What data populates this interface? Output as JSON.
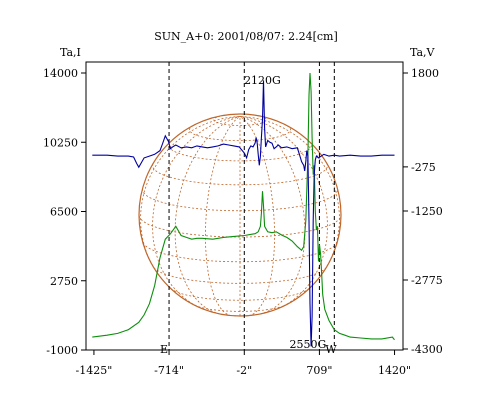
{
  "chart_data": [
    {
      "type": "line",
      "title": "SUN_A+0: 2001/08/07: 2.24[cm]",
      "left_axis_label": "Ta,I",
      "right_axis_label": "Ta,V",
      "xlim": [
        -1500,
        1500
      ],
      "x_tick_labels": [
        "-1425\"",
        "-714\"",
        "-2\"",
        "709\"",
        "1420\""
      ],
      "x_ticks": [
        -1425,
        -714,
        -2,
        709,
        1420
      ],
      "left_ylim": [
        -1000,
        14000
      ],
      "left_ticks": [
        14000,
        10250,
        6500,
        2750,
        -1000
      ],
      "right_ylim": [
        -4300,
        1800
      ],
      "right_ticks": [
        1800,
        -275,
        -1250,
        -2775,
        -4300
      ],
      "right_tick_labels": [
        "1800",
        "-275",
        "-1250",
        "-2775",
        "-4300"
      ],
      "markers": [
        {
          "x": -714,
          "label": "E"
        },
        {
          "x": -2,
          "label": ""
        },
        {
          "x": 709,
          "label": ""
        },
        {
          "x": 850,
          "label": "W"
        }
      ],
      "annotations": [
        {
          "text": "2120G",
          "x": 170,
          "y_left": 13400
        },
        {
          "text": "2550G",
          "x": 600,
          "y_left": -900
        }
      ],
      "series": [
        {
          "name": "",
          "axis": "left",
          "color": "#0d8f0d",
          "x": [
            -1440,
            -1300,
            -1200,
            -1100,
            -1000,
            -950,
            -900,
            -850,
            -800,
            -750,
            -700,
            -650,
            -600,
            -550,
            -500,
            -450,
            -400,
            -300,
            -200,
            -100,
            0,
            50,
            100,
            130,
            150,
            160,
            170,
            180,
            190,
            200,
            220,
            260,
            300,
            360,
            400,
            450,
            500,
            540,
            560,
            580,
            600,
            610,
            620,
            630,
            640,
            650,
            660,
            670,
            680,
            690,
            700,
            710,
            720,
            730,
            740,
            760,
            800,
            850,
            900,
            950,
            1000,
            1100,
            1200,
            1300,
            1400,
            1420
          ],
          "y": [
            -300,
            -200,
            -100,
            100,
            500,
            900,
            1500,
            2500,
            4000,
            5000,
            5300,
            5700,
            5200,
            5100,
            5000,
            5050,
            5050,
            5000,
            5100,
            5150,
            5200,
            5250,
            5300,
            5400,
            5700,
            6400,
            7600,
            6800,
            5700,
            5600,
            5400,
            5350,
            5400,
            5200,
            5100,
            4900,
            4600,
            4400,
            4600,
            6000,
            9500,
            12800,
            14000,
            13000,
            10500,
            8500,
            9000,
            6500,
            5500,
            5700,
            3800,
            4700,
            4200,
            3200,
            2000,
            1200,
            600,
            100,
            -100,
            -200,
            -300,
            -350,
            -400,
            -400,
            -300,
            -450
          ]
        },
        {
          "name": "",
          "axis": "left",
          "color": "#0000a0",
          "x": [
            -1440,
            -1300,
            -1200,
            -1100,
            -1050,
            -1020,
            -1000,
            -980,
            -950,
            -900,
            -850,
            -800,
            -780,
            -750,
            -720,
            -700,
            -680,
            -650,
            -600,
            -550,
            -500,
            -450,
            -400,
            -350,
            -300,
            -250,
            -200,
            -150,
            -100,
            -50,
            0,
            20,
            40,
            60,
            80,
            100,
            110,
            120,
            130,
            140,
            150,
            160,
            170,
            180,
            190,
            200,
            220,
            240,
            260,
            280,
            300,
            320,
            350,
            400,
            450,
            500,
            520,
            540,
            560,
            570,
            580,
            590,
            600,
            610,
            620,
            630,
            640,
            650,
            660,
            670,
            680,
            700,
            750,
            800,
            850,
            900,
            1000,
            1100,
            1200,
            1300,
            1400,
            1420
          ],
          "y": [
            9550,
            9550,
            9500,
            9500,
            9450,
            9100,
            8900,
            9100,
            9400,
            9500,
            9600,
            9800,
            10100,
            10600,
            10300,
            9900,
            10000,
            10100,
            9950,
            10000,
            9950,
            10050,
            10000,
            9950,
            10000,
            10050,
            10150,
            10100,
            10050,
            10000,
            9650,
            9400,
            9850,
            10050,
            10000,
            10200,
            10500,
            10200,
            9600,
            9000,
            9500,
            10500,
            11500,
            13600,
            11000,
            10000,
            10350,
            10250,
            10200,
            9900,
            10000,
            10100,
            9950,
            10000,
            9900,
            9950,
            9600,
            9200,
            9000,
            8700,
            9200,
            9800,
            9500,
            6000,
            1500,
            -800,
            800,
            6000,
            8500,
            9300,
            9500,
            9400,
            9600,
            9500,
            9550,
            9500,
            9550,
            9500,
            9500,
            9550,
            9550,
            9550
          ]
        }
      ]
    }
  ]
}
